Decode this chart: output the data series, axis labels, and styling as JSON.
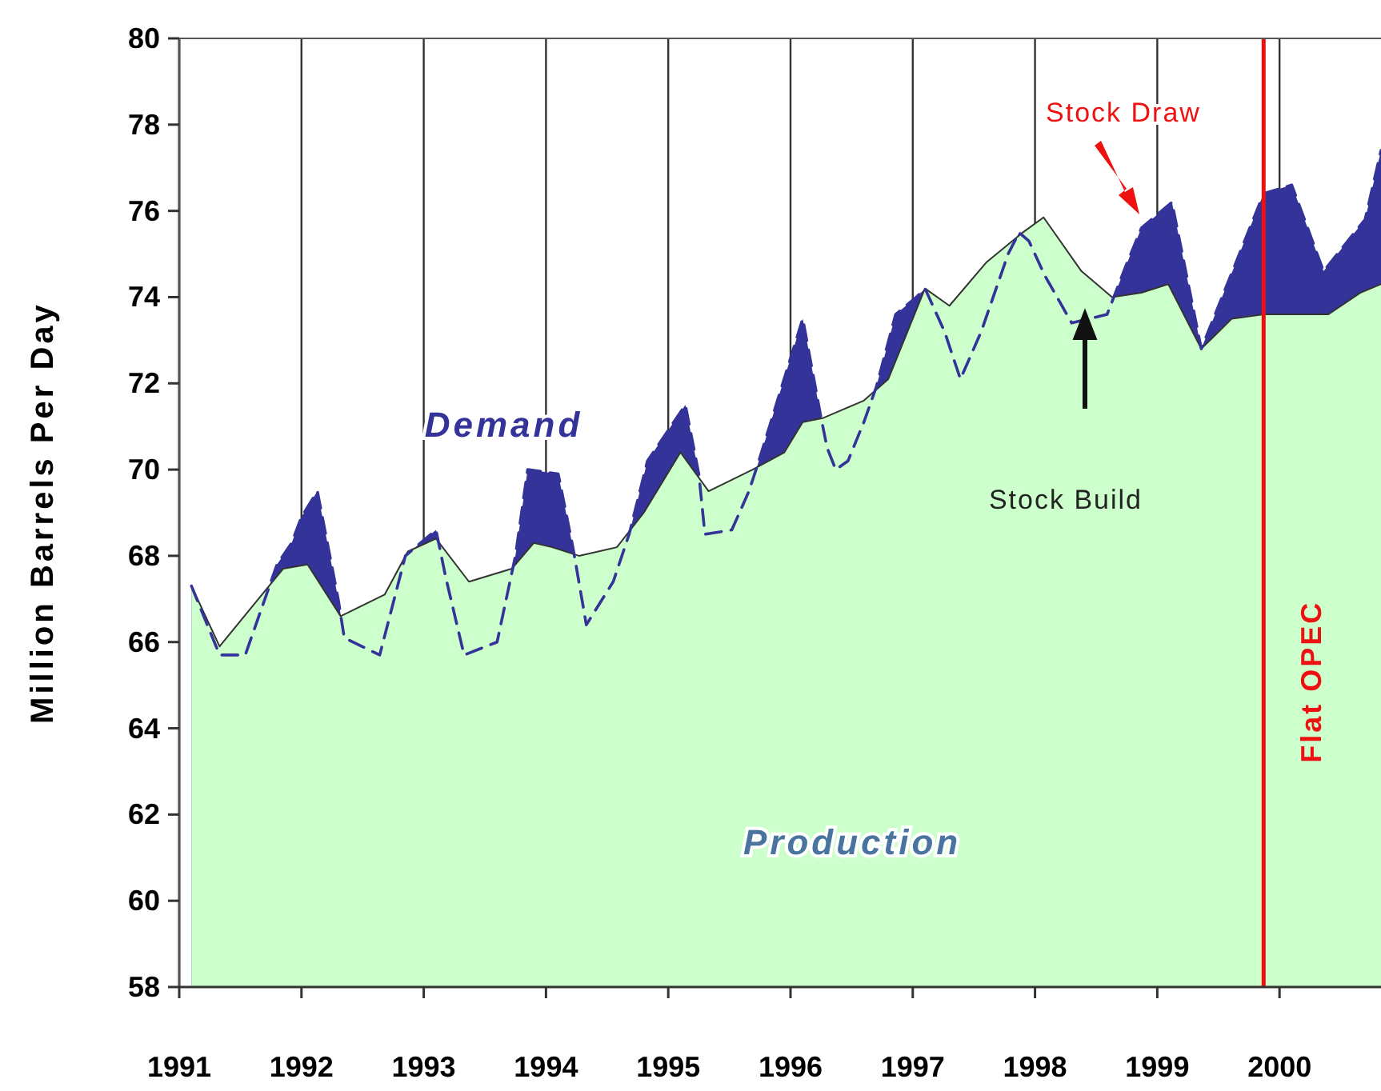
{
  "chart_data": {
    "type": "area",
    "ylabel": "Million Barrels Per Day",
    "xlim": [
      1991,
      2000.83
    ],
    "xticks": [
      1991,
      1992,
      1993,
      1994,
      1995,
      1996,
      1997,
      1998,
      1999,
      2000
    ],
    "ylim": [
      58,
      80
    ],
    "yticks": [
      58,
      60,
      62,
      64,
      66,
      68,
      70,
      72,
      74,
      76,
      78,
      80
    ],
    "grid": "x",
    "series": [
      {
        "name": "Demand",
        "color": "#333399",
        "line_style": "dashed",
        "x": [
          1991.1,
          1991.33,
          1991.54,
          1991.8,
          1991.92,
          1992.0,
          1992.13,
          1992.3,
          1992.35,
          1992.64,
          1992.85,
          1993.1,
          1993.18,
          1993.33,
          1993.6,
          1993.75,
          1993.85,
          1994.1,
          1994.22,
          1994.33,
          1994.55,
          1994.68,
          1994.83,
          1995.14,
          1995.25,
          1995.3,
          1995.52,
          1995.66,
          1995.73,
          1996.1,
          1996.25,
          1996.3,
          1996.37,
          1996.47,
          1996.6,
          1996.7,
          1996.86,
          1997.03,
          1997.1,
          1997.26,
          1997.39,
          1997.56,
          1997.78,
          1997.87,
          1997.95,
          1998.08,
          1998.3,
          1998.59,
          1998.74,
          1998.87,
          1999.12,
          1999.36,
          1999.87,
          2000.1,
          2000.36,
          2000.7,
          2000.83
        ],
        "values": [
          67.3,
          65.7,
          65.7,
          67.8,
          68.3,
          68.9,
          69.5,
          67.0,
          66.1,
          65.7,
          68.0,
          68.6,
          67.5,
          65.7,
          66.0,
          68.0,
          70.0,
          69.9,
          68.2,
          66.4,
          67.4,
          68.5,
          70.2,
          71.5,
          69.9,
          68.5,
          68.6,
          69.5,
          70.1,
          73.5,
          71.2,
          70.5,
          70.0,
          70.2,
          71.1,
          71.9,
          73.6,
          74.0,
          74.2,
          73.2,
          72.1,
          73.2,
          75.0,
          75.5,
          75.3,
          74.5,
          73.4,
          73.6,
          74.7,
          75.6,
          76.2,
          72.8,
          76.4,
          76.6,
          74.6,
          75.8,
          77.4
        ]
      },
      {
        "name": "Production",
        "color": "#ccffcc",
        "x": [
          1991.1,
          1991.33,
          1991.85,
          1992.05,
          1992.32,
          1992.68,
          1992.87,
          1993.1,
          1993.37,
          1993.72,
          1993.9,
          1994.05,
          1994.27,
          1994.58,
          1994.8,
          1995.1,
          1995.33,
          1995.69,
          1995.95,
          1996.1,
          1996.27,
          1996.6,
          1996.8,
          1997.1,
          1997.3,
          1997.6,
          1997.9,
          1998.07,
          1998.38,
          1998.63,
          1998.87,
          1999.09,
          1999.36,
          1999.61,
          1999.87,
          2000.4,
          2000.66,
          2000.83
        ],
        "values": [
          67.3,
          65.9,
          67.7,
          67.8,
          66.6,
          67.1,
          68.1,
          68.4,
          67.4,
          67.7,
          68.3,
          68.2,
          68.0,
          68.2,
          69.0,
          70.4,
          69.5,
          70.0,
          70.4,
          71.1,
          71.2,
          71.6,
          72.1,
          74.2,
          73.8,
          74.8,
          75.5,
          75.85,
          74.6,
          74.0,
          74.1,
          74.3,
          72.8,
          73.5,
          73.6,
          73.6,
          74.1,
          74.3
        ]
      }
    ],
    "ref_lines": [
      {
        "axis": "x",
        "value": 1999.87,
        "label": "Flat OPEC",
        "color": "#ee1111"
      }
    ],
    "annotations": [
      "Stock Draw",
      "Stock Build"
    ]
  }
}
